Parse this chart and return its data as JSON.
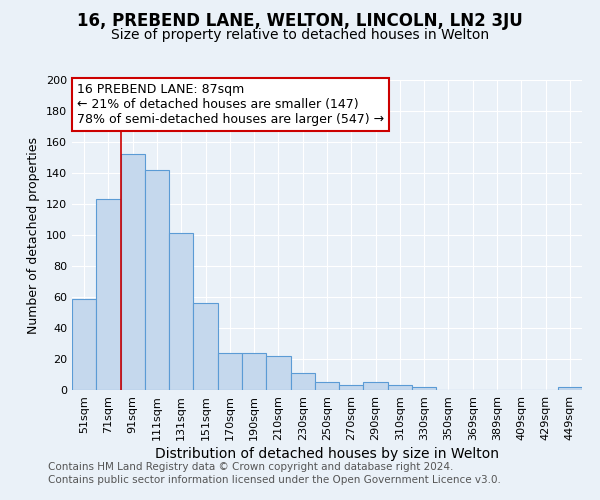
{
  "title": "16, PREBEND LANE, WELTON, LINCOLN, LN2 3JU",
  "subtitle": "Size of property relative to detached houses in Welton",
  "xlabel": "Distribution of detached houses by size in Welton",
  "ylabel": "Number of detached properties",
  "bar_labels": [
    "51sqm",
    "71sqm",
    "91sqm",
    "111sqm",
    "131sqm",
    "151sqm",
    "170sqm",
    "190sqm",
    "210sqm",
    "230sqm",
    "250sqm",
    "270sqm",
    "290sqm",
    "310sqm",
    "330sqm",
    "350sqm",
    "369sqm",
    "389sqm",
    "409sqm",
    "429sqm",
    "449sqm"
  ],
  "bar_values": [
    59,
    123,
    152,
    142,
    101,
    56,
    24,
    24,
    22,
    11,
    5,
    3,
    5,
    3,
    2,
    0,
    0,
    0,
    0,
    0,
    2
  ],
  "bar_color": "#c5d8ed",
  "bar_edge_color": "#5b9bd5",
  "vline_color": "#cc0000",
  "annotation_text": "16 PREBEND LANE: 87sqm\n← 21% of detached houses are smaller (147)\n78% of semi-detached houses are larger (547) →",
  "ylim": [
    0,
    200
  ],
  "yticks": [
    0,
    20,
    40,
    60,
    80,
    100,
    120,
    140,
    160,
    180,
    200
  ],
  "background_color": "#eaf1f8",
  "grid_color": "#ffffff",
  "footer1": "Contains HM Land Registry data © Crown copyright and database right 2024.",
  "footer2": "Contains public sector information licensed under the Open Government Licence v3.0.",
  "title_fontsize": 12,
  "subtitle_fontsize": 10,
  "xlabel_fontsize": 10,
  "ylabel_fontsize": 9,
  "tick_fontsize": 8,
  "annotation_fontsize": 9,
  "footer_fontsize": 7.5
}
